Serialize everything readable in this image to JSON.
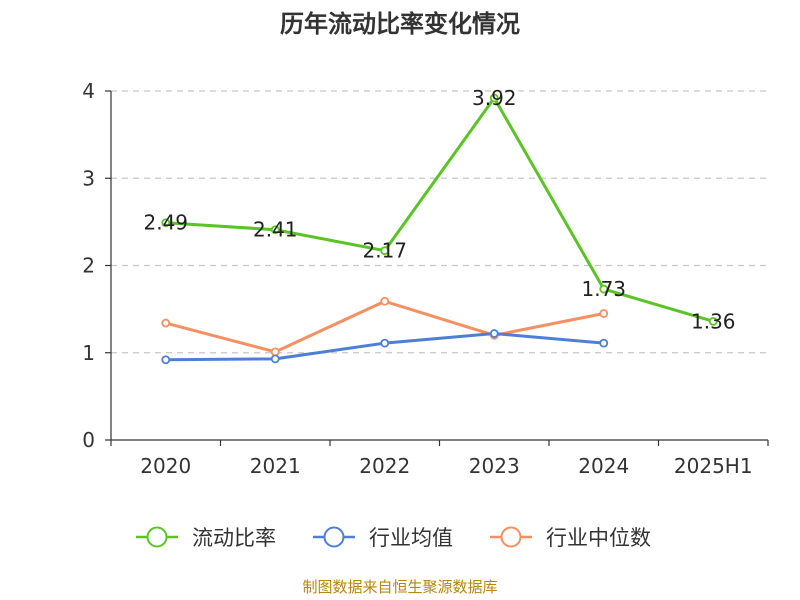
{
  "chart_data": {
    "type": "line",
    "title": "历年流动比率变化情况",
    "categories": [
      "2020",
      "2021",
      "2022",
      "2023",
      "2024",
      "2025H1"
    ],
    "ylim": [
      0,
      4
    ],
    "yticks": [
      0,
      1,
      2,
      3,
      4
    ],
    "grid": true,
    "legend_position": "bottom",
    "series": [
      {
        "name": "流动比率",
        "color": "#5bc425",
        "values": [
          2.49,
          2.41,
          2.17,
          3.92,
          1.73,
          1.36
        ],
        "labels": true
      },
      {
        "name": "行业均值",
        "color": "#4e7fd6",
        "values": [
          0.92,
          0.93,
          1.11,
          1.22,
          1.11,
          null
        ],
        "labels": false
      },
      {
        "name": "行业中位数",
        "color": "#f49062",
        "values": [
          1.34,
          1.01,
          1.59,
          1.2,
          1.45,
          null
        ],
        "labels": false
      }
    ]
  },
  "source_note": "制图数据来自恒生聚源数据库"
}
